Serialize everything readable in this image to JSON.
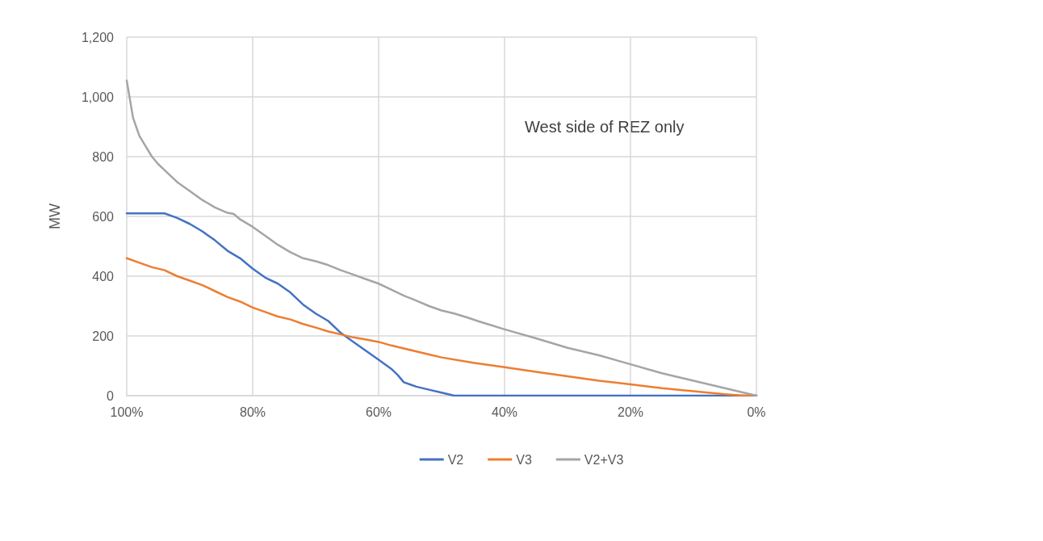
{
  "chart_data": {
    "type": "line",
    "ylabel": "MW",
    "annotations": [
      "West side of REZ only"
    ],
    "xlim": [
      100,
      0
    ],
    "xticks": [
      {
        "value": 100,
        "label": "100%"
      },
      {
        "value": 80,
        "label": "80%"
      },
      {
        "value": 60,
        "label": "60%"
      },
      {
        "value": 40,
        "label": "40%"
      },
      {
        "value": 20,
        "label": "20%"
      },
      {
        "value": 0,
        "label": "0%"
      }
    ],
    "ylim": [
      0,
      1200
    ],
    "yticks": [
      0,
      200,
      400,
      600,
      800,
      {
        "value": 1000,
        "label": "1,000"
      },
      {
        "value": 1200,
        "label": "1,200"
      }
    ],
    "grid": true,
    "legend": "bottom",
    "marker": "none",
    "line_style": "solid",
    "series": [
      {
        "name": "V2",
        "color": "#4472c4",
        "x": [
          100,
          98,
          96,
          94,
          92,
          90,
          88,
          86,
          84,
          82,
          80,
          78,
          76,
          74,
          72,
          70,
          68,
          66,
          64,
          62,
          60,
          58,
          57,
          56,
          54,
          52,
          50,
          48,
          40,
          30,
          20,
          10,
          0
        ],
        "values": [
          610,
          610,
          610,
          610,
          595,
          575,
          550,
          520,
          485,
          460,
          425,
          395,
          375,
          345,
          305,
          275,
          250,
          210,
          180,
          150,
          120,
          90,
          70,
          45,
          30,
          20,
          10,
          0,
          0,
          0,
          0,
          0,
          0
        ]
      },
      {
        "name": "V3",
        "color": "#ed7d31",
        "x": [
          100,
          98,
          96,
          94,
          92,
          90,
          88,
          86,
          84,
          82,
          80,
          78,
          76,
          74,
          72,
          70,
          68,
          66,
          64,
          62,
          60,
          58,
          56,
          54,
          52,
          50,
          45,
          40,
          35,
          30,
          25,
          20,
          15,
          10,
          5,
          2,
          0
        ],
        "values": [
          460,
          445,
          430,
          420,
          400,
          385,
          370,
          350,
          330,
          315,
          295,
          280,
          265,
          255,
          240,
          228,
          215,
          205,
          195,
          188,
          180,
          168,
          158,
          148,
          138,
          128,
          110,
          95,
          80,
          65,
          50,
          38,
          25,
          15,
          5,
          0,
          0
        ]
      },
      {
        "name": "V2+V3",
        "color": "#a5a5a5",
        "x": [
          100,
          99,
          98,
          97,
          96,
          95,
          94,
          92,
          90,
          88,
          86,
          84,
          83,
          82,
          80,
          78,
          76,
          74,
          72,
          70,
          68,
          66,
          64,
          62,
          60,
          58,
          56,
          54,
          52,
          50,
          48,
          46,
          44,
          42,
          40,
          35,
          30,
          25,
          20,
          15,
          10,
          5,
          0
        ],
        "values": [
          1055,
          930,
          870,
          835,
          800,
          775,
          755,
          715,
          685,
          655,
          630,
          612,
          608,
          590,
          565,
          535,
          505,
          480,
          460,
          450,
          437,
          420,
          405,
          390,
          375,
          355,
          335,
          318,
          300,
          285,
          275,
          262,
          248,
          235,
          222,
          192,
          160,
          135,
          105,
          75,
          50,
          25,
          0
        ]
      }
    ]
  }
}
